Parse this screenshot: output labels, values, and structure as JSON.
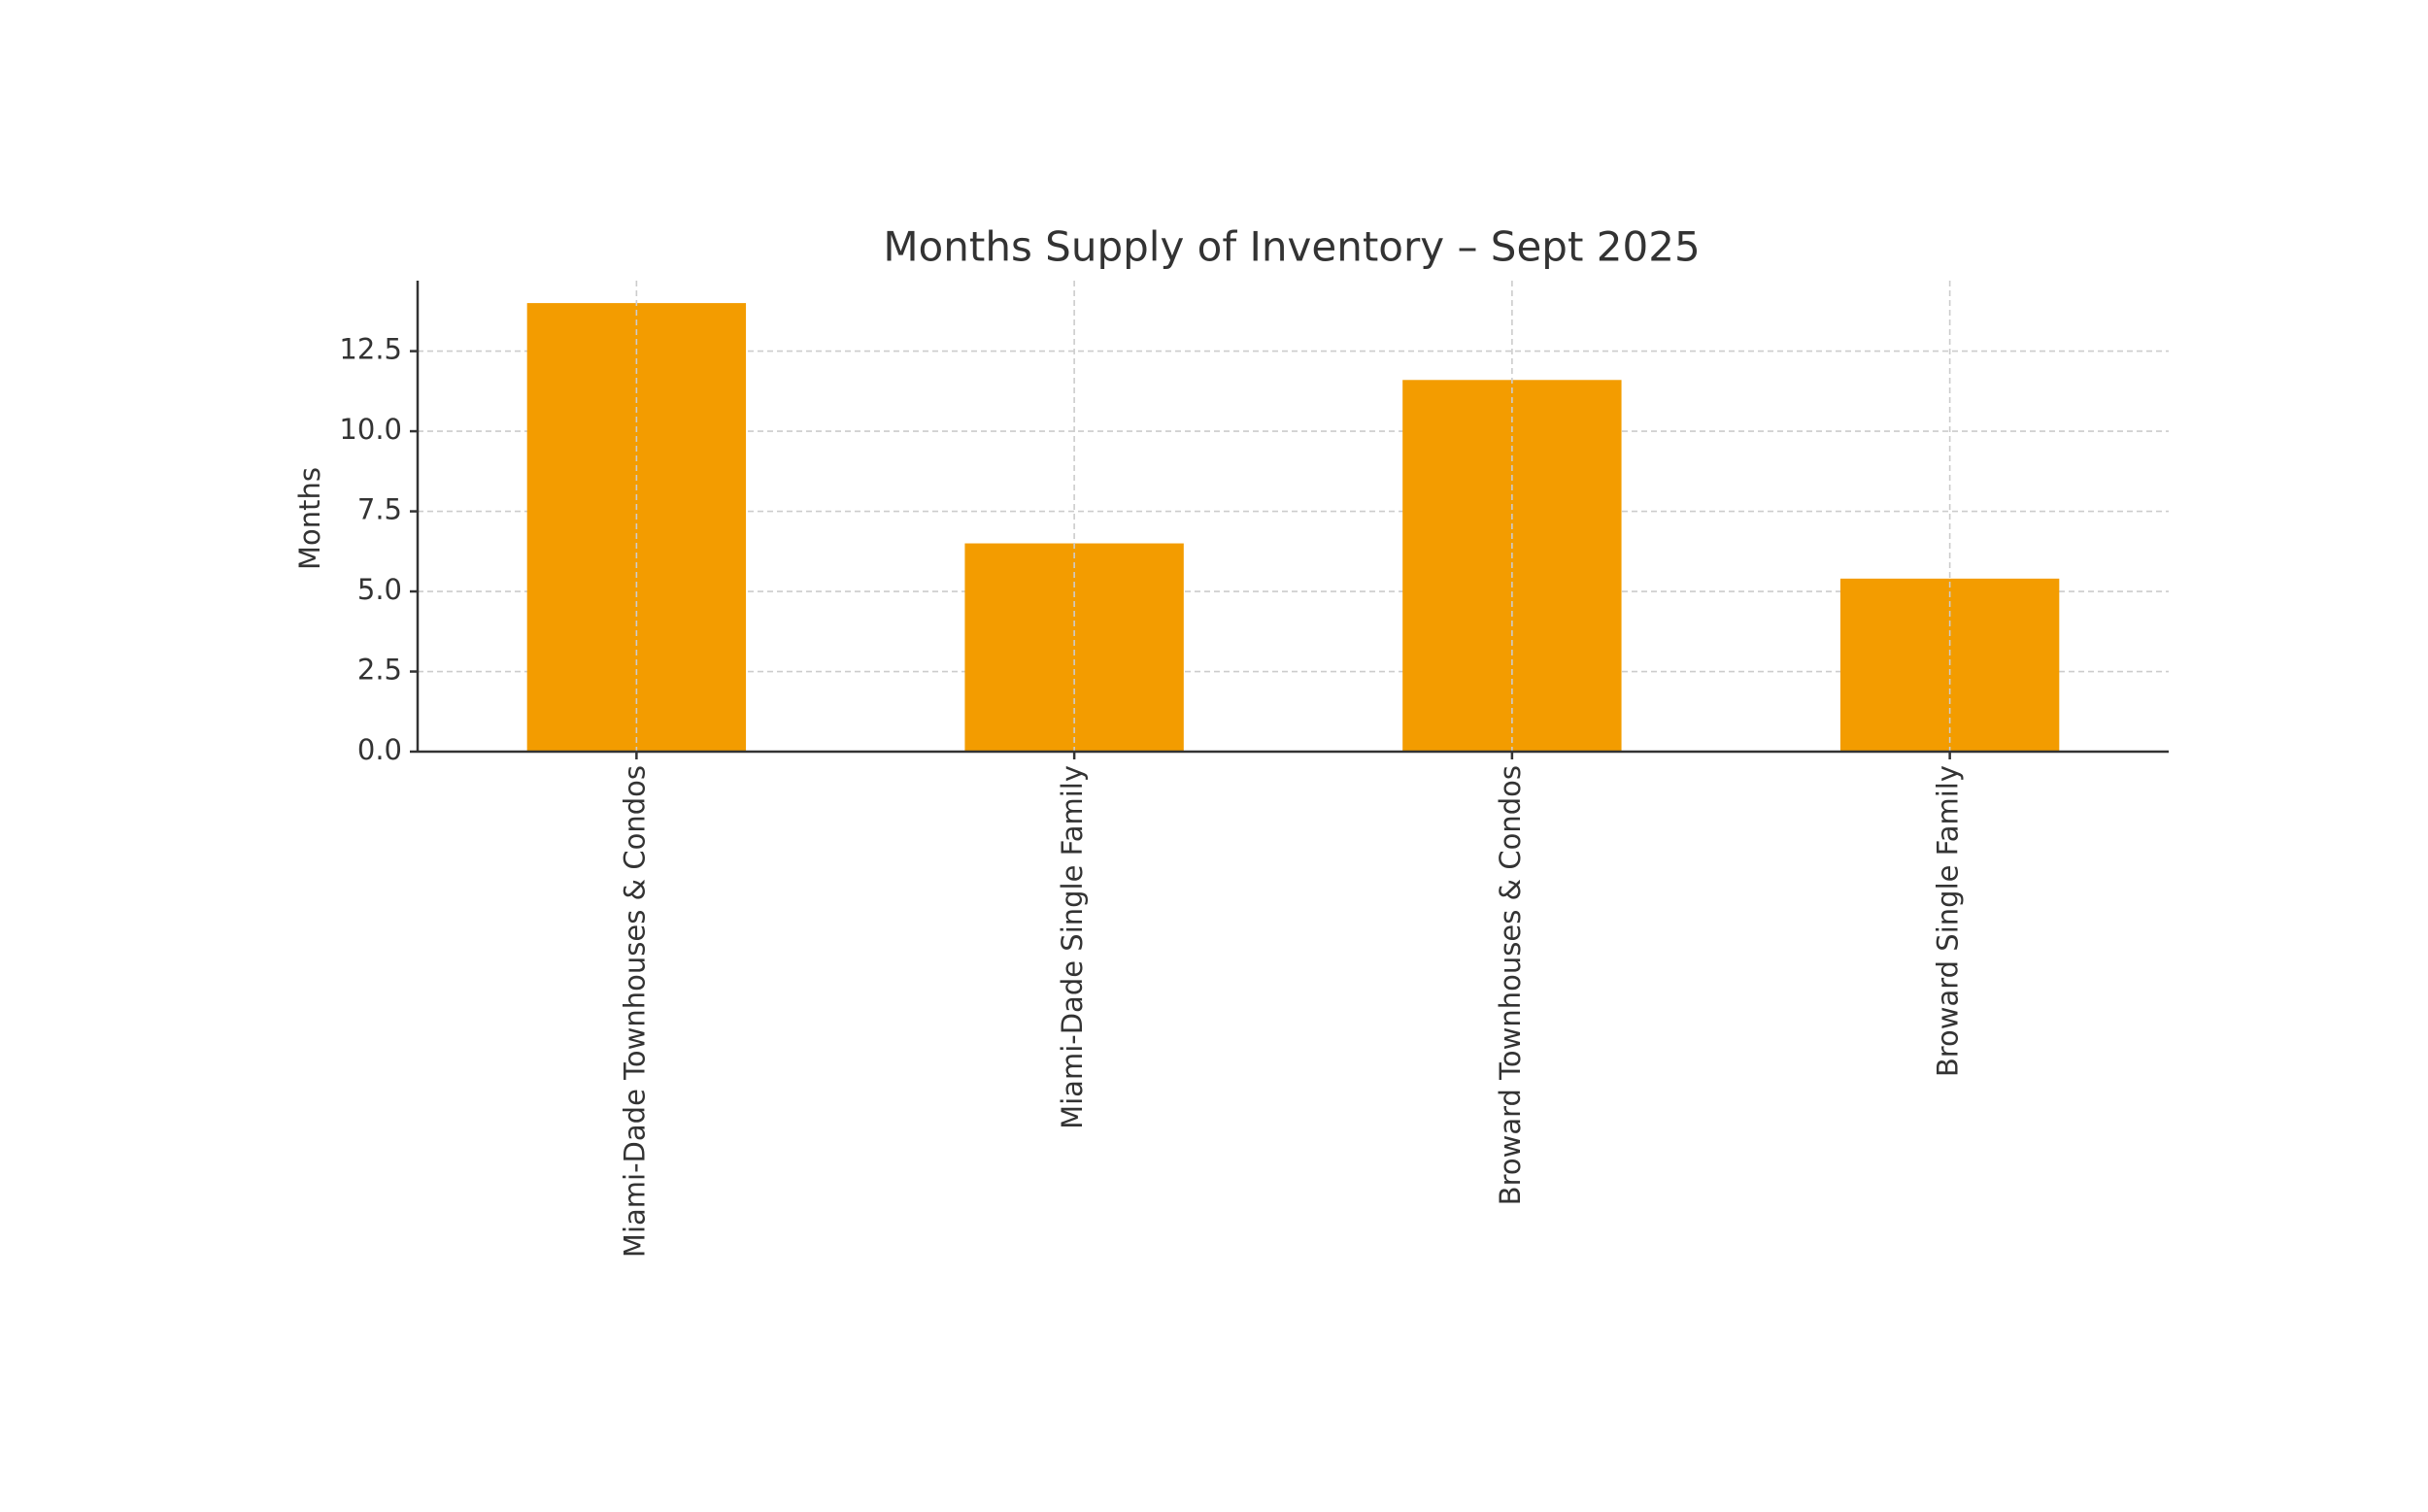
{
  "chart_data": {
    "type": "bar",
    "title": "Months Supply of Inventory – Sept 2025",
    "y_label": "Months",
    "categories": [
      "Miami-Dade Townhouses & Condos",
      "Miami-Dade Single Family",
      "Broward Townhouses & Condos",
      "Broward Single Family"
    ],
    "values": [
      14.0,
      6.5,
      11.6,
      5.4
    ],
    "color": "#f39c00",
    "ylim": [
      0,
      14.7
    ],
    "yticks": [
      {
        "value": 0,
        "label": "0.0"
      },
      2.5,
      {
        "value": 5,
        "label": "5.0"
      },
      7.5,
      {
        "value": 10,
        "label": "10.0"
      },
      12.5
    ],
    "grid": true
  }
}
